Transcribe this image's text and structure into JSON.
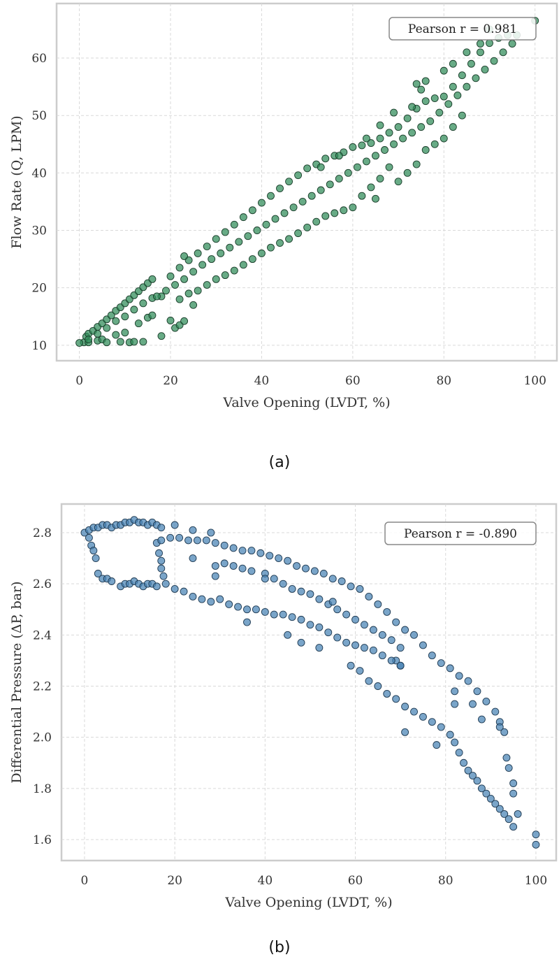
{
  "chart_data": [
    {
      "type": "scatter",
      "caption": "(a)",
      "xlabel": "Valve Opening (LVDT, %)",
      "ylabel": "Flow Rate (Q, LPM)",
      "xlim": [
        -5,
        104.8
      ],
      "ylim": [
        7.3,
        69.5
      ],
      "xticks": [
        0,
        20,
        40,
        60,
        80,
        100
      ],
      "yticks": [
        10,
        20,
        30,
        40,
        50,
        60
      ],
      "grid": true,
      "annotation": "Pearson r = 0.981",
      "annotation_position": "top-right",
      "color": "#2e8b57",
      "edge_color": "#1a3d2a",
      "points": [
        [
          1,
          10.5
        ],
        [
          1.5,
          11.5
        ],
        [
          2,
          12
        ],
        [
          3,
          12.5
        ],
        [
          4,
          13.2
        ],
        [
          5,
          13.8
        ],
        [
          6,
          14.5
        ],
        [
          7,
          15.2
        ],
        [
          8,
          16
        ],
        [
          9,
          16.6
        ],
        [
          10,
          17.3
        ],
        [
          11,
          18
        ],
        [
          12,
          18.7
        ],
        [
          13,
          19.4
        ],
        [
          14,
          20.1
        ],
        [
          15,
          20.8
        ],
        [
          16,
          21.5
        ],
        [
          0,
          10.4
        ],
        [
          2,
          10.5
        ],
        [
          4,
          10.8
        ],
        [
          5,
          11
        ],
        [
          6,
          10.5
        ],
        [
          8,
          11.8
        ],
        [
          9,
          10.6
        ],
        [
          10,
          12.2
        ],
        [
          11,
          10.5
        ],
        [
          12,
          10.6
        ],
        [
          13,
          13.8
        ],
        [
          14,
          10.6
        ],
        [
          15,
          14.8
        ],
        [
          16,
          15.2
        ],
        [
          18,
          11.6
        ],
        [
          20,
          14.3
        ],
        [
          21,
          13
        ],
        [
          22,
          13.5
        ],
        [
          23,
          14.2
        ],
        [
          2,
          11
        ],
        [
          4,
          12
        ],
        [
          6,
          13
        ],
        [
          8,
          14.2
        ],
        [
          10,
          15
        ],
        [
          12,
          16.2
        ],
        [
          14,
          17.3
        ],
        [
          16,
          18.2
        ],
        [
          18,
          18.5
        ],
        [
          20,
          22
        ],
        [
          22,
          23.5
        ],
        [
          24,
          24.8
        ],
        [
          26,
          26
        ],
        [
          28,
          27.2
        ],
        [
          30,
          28.5
        ],
        [
          32,
          29.7
        ],
        [
          34,
          31
        ],
        [
          36,
          32.3
        ],
        [
          38,
          33.5
        ],
        [
          40,
          34.8
        ],
        [
          42,
          36
        ],
        [
          44,
          37.3
        ],
        [
          46,
          38.5
        ],
        [
          48,
          39.6
        ],
        [
          50,
          40.8
        ],
        [
          52,
          41.5
        ],
        [
          54,
          42.5
        ],
        [
          56,
          43
        ],
        [
          58,
          43.6
        ],
        [
          60,
          44.5
        ],
        [
          62,
          44.8
        ],
        [
          64,
          45.2
        ],
        [
          66,
          46
        ],
        [
          68,
          47
        ],
        [
          70,
          48
        ],
        [
          72,
          49.5
        ],
        [
          74,
          51.2
        ],
        [
          76,
          52.5
        ],
        [
          78,
          53
        ],
        [
          80,
          53.3
        ],
        [
          82,
          55
        ],
        [
          84,
          57
        ],
        [
          86,
          59
        ],
        [
          88,
          61
        ],
        [
          90,
          62.6
        ],
        [
          92,
          63.5
        ],
        [
          94,
          64
        ],
        [
          96,
          64
        ],
        [
          17,
          18.5
        ],
        [
          19,
          19.5
        ],
        [
          21,
          20.5
        ],
        [
          23,
          21.5
        ],
        [
          25,
          22.8
        ],
        [
          27,
          24
        ],
        [
          29,
          25
        ],
        [
          31,
          26
        ],
        [
          33,
          27
        ],
        [
          35,
          28
        ],
        [
          37,
          29
        ],
        [
          39,
          30
        ],
        [
          41,
          31
        ],
        [
          43,
          32
        ],
        [
          45,
          33
        ],
        [
          47,
          34
        ],
        [
          49,
          35
        ],
        [
          51,
          36
        ],
        [
          53,
          37
        ],
        [
          55,
          38
        ],
        [
          57,
          39
        ],
        [
          59,
          40
        ],
        [
          61,
          41
        ],
        [
          63,
          42
        ],
        [
          65,
          43
        ],
        [
          67,
          44
        ],
        [
          69,
          45
        ],
        [
          71,
          46
        ],
        [
          73,
          47
        ],
        [
          75,
          48
        ],
        [
          77,
          49
        ],
        [
          79,
          50.5
        ],
        [
          81,
          52
        ],
        [
          83,
          53.5
        ],
        [
          85,
          55
        ],
        [
          87,
          56.5
        ],
        [
          89,
          58
        ],
        [
          91,
          59.5
        ],
        [
          93,
          61
        ],
        [
          95,
          62.5
        ],
        [
          22,
          18
        ],
        [
          24,
          19
        ],
        [
          26,
          19.5
        ],
        [
          28,
          20.5
        ],
        [
          30,
          21.5
        ],
        [
          32,
          22.2
        ],
        [
          34,
          23
        ],
        [
          36,
          24
        ],
        [
          38,
          25
        ],
        [
          40,
          26
        ],
        [
          42,
          27
        ],
        [
          44,
          27.8
        ],
        [
          46,
          28.5
        ],
        [
          48,
          29.5
        ],
        [
          50,
          30.5
        ],
        [
          52,
          31.5
        ],
        [
          54,
          32.5
        ],
        [
          56,
          33
        ],
        [
          58,
          33.5
        ],
        [
          60,
          34
        ],
        [
          62,
          36
        ],
        [
          64,
          37.5
        ],
        [
          66,
          39
        ],
        [
          68,
          41
        ],
        [
          70,
          38.5
        ],
        [
          72,
          40
        ],
        [
          74,
          41.5
        ],
        [
          76,
          44
        ],
        [
          78,
          45
        ],
        [
          80,
          46
        ],
        [
          82,
          48
        ],
        [
          84,
          50
        ],
        [
          65,
          35.5
        ],
        [
          69,
          50.5
        ],
        [
          73,
          51.5
        ],
        [
          74,
          55.5
        ],
        [
          75,
          54.5
        ],
        [
          76,
          56
        ],
        [
          80,
          57.8
        ],
        [
          82,
          59
        ],
        [
          85,
          61
        ],
        [
          88,
          62.5
        ],
        [
          90,
          65
        ],
        [
          100,
          66.5
        ],
        [
          66,
          48.3
        ],
        [
          63,
          46
        ],
        [
          57,
          43
        ],
        [
          53,
          41
        ],
        [
          25,
          17
        ],
        [
          23,
          25.5
        ]
      ]
    },
    {
      "type": "scatter",
      "caption": "(b)",
      "xlabel": "Valve Opening (LVDT, %)",
      "ylabel": "Differential Pressure (ΔP, bar)",
      "xlim": [
        -5.1,
        104.5
      ],
      "ylim": [
        1.518,
        2.912
      ],
      "xticks": [
        0,
        20,
        40,
        60,
        80,
        100
      ],
      "yticks": [
        1.6,
        1.8,
        2.0,
        2.2,
        2.4,
        2.6,
        2.8
      ],
      "grid": true,
      "annotation": "Pearson r = -0.890",
      "annotation_position": "top-right",
      "color": "#4682b4",
      "edge_color": "#1f3a52",
      "points": [
        [
          0,
          2.8
        ],
        [
          1,
          2.81
        ],
        [
          2,
          2.82
        ],
        [
          3,
          2.82
        ],
        [
          4,
          2.83
        ],
        [
          5,
          2.83
        ],
        [
          6,
          2.82
        ],
        [
          7,
          2.83
        ],
        [
          8,
          2.83
        ],
        [
          9,
          2.84
        ],
        [
          10,
          2.84
        ],
        [
          11,
          2.85
        ],
        [
          12,
          2.84
        ],
        [
          13,
          2.84
        ],
        [
          14,
          2.83
        ],
        [
          15,
          2.84
        ],
        [
          16,
          2.83
        ],
        [
          17,
          2.82
        ],
        [
          1,
          2.78
        ],
        [
          1.5,
          2.75
        ],
        [
          2,
          2.73
        ],
        [
          2.5,
          2.7
        ],
        [
          3,
          2.64
        ],
        [
          4,
          2.62
        ],
        [
          5,
          2.62
        ],
        [
          6,
          2.61
        ],
        [
          8,
          2.59
        ],
        [
          9,
          2.6
        ],
        [
          10,
          2.6
        ],
        [
          11,
          2.61
        ],
        [
          12,
          2.6
        ],
        [
          13,
          2.59
        ],
        [
          14,
          2.6
        ],
        [
          15,
          2.6
        ],
        [
          16,
          2.59
        ],
        [
          16,
          2.76
        ],
        [
          16.5,
          2.72
        ],
        [
          17,
          2.69
        ],
        [
          17,
          2.66
        ],
        [
          17.5,
          2.63
        ],
        [
          17,
          2.77
        ],
        [
          19,
          2.78
        ],
        [
          21,
          2.78
        ],
        [
          23,
          2.77
        ],
        [
          25,
          2.77
        ],
        [
          27,
          2.77
        ],
        [
          29,
          2.76
        ],
        [
          31,
          2.75
        ],
        [
          33,
          2.74
        ],
        [
          35,
          2.73
        ],
        [
          37,
          2.73
        ],
        [
          39,
          2.72
        ],
        [
          41,
          2.71
        ],
        [
          43,
          2.7
        ],
        [
          45,
          2.69
        ],
        [
          47,
          2.67
        ],
        [
          49,
          2.66
        ],
        [
          51,
          2.65
        ],
        [
          53,
          2.64
        ],
        [
          55,
          2.62
        ],
        [
          57,
          2.61
        ],
        [
          59,
          2.59
        ],
        [
          61,
          2.58
        ],
        [
          63,
          2.55
        ],
        [
          65,
          2.52
        ],
        [
          67,
          2.49
        ],
        [
          69,
          2.45
        ],
        [
          71,
          2.42
        ],
        [
          73,
          2.4
        ],
        [
          75,
          2.36
        ],
        [
          77,
          2.32
        ],
        [
          79,
          2.29
        ],
        [
          81,
          2.27
        ],
        [
          83,
          2.24
        ],
        [
          85,
          2.22
        ],
        [
          87,
          2.18
        ],
        [
          89,
          2.14
        ],
        [
          91,
          2.1
        ],
        [
          92,
          2.06
        ],
        [
          93,
          2.02
        ],
        [
          93.5,
          1.92
        ],
        [
          94,
          1.88
        ],
        [
          95,
          1.82
        ],
        [
          95,
          1.78
        ],
        [
          96,
          1.7
        ],
        [
          20,
          2.83
        ],
        [
          24,
          2.81
        ],
        [
          28,
          2.8
        ],
        [
          29,
          2.67
        ],
        [
          31,
          2.68
        ],
        [
          33,
          2.67
        ],
        [
          35,
          2.66
        ],
        [
          37,
          2.65
        ],
        [
          40,
          2.64
        ],
        [
          42,
          2.62
        ],
        [
          44,
          2.6
        ],
        [
          46,
          2.58
        ],
        [
          48,
          2.57
        ],
        [
          50,
          2.56
        ],
        [
          52,
          2.54
        ],
        [
          54,
          2.52
        ],
        [
          56,
          2.5
        ],
        [
          58,
          2.48
        ],
        [
          60,
          2.46
        ],
        [
          62,
          2.44
        ],
        [
          64,
          2.42
        ],
        [
          66,
          2.4
        ],
        [
          68,
          2.38
        ],
        [
          70,
          2.35
        ],
        [
          70,
          2.28
        ],
        [
          69,
          2.3
        ],
        [
          18,
          2.6
        ],
        [
          20,
          2.58
        ],
        [
          22,
          2.57
        ],
        [
          24,
          2.55
        ],
        [
          26,
          2.54
        ],
        [
          28,
          2.53
        ],
        [
          30,
          2.54
        ],
        [
          32,
          2.52
        ],
        [
          34,
          2.51
        ],
        [
          36,
          2.5
        ],
        [
          38,
          2.5
        ],
        [
          40,
          2.49
        ],
        [
          42,
          2.48
        ],
        [
          44,
          2.48
        ],
        [
          46,
          2.47
        ],
        [
          48,
          2.46
        ],
        [
          50,
          2.44
        ],
        [
          52,
          2.43
        ],
        [
          54,
          2.41
        ],
        [
          56,
          2.39
        ],
        [
          58,
          2.37
        ],
        [
          60,
          2.36
        ],
        [
          62,
          2.35
        ],
        [
          64,
          2.34
        ],
        [
          66,
          2.32
        ],
        [
          68,
          2.3
        ],
        [
          70,
          2.28
        ],
        [
          45,
          2.4
        ],
        [
          48,
          2.37
        ],
        [
          52,
          2.35
        ],
        [
          36,
          2.45
        ],
        [
          59,
          2.28
        ],
        [
          61,
          2.26
        ],
        [
          63,
          2.22
        ],
        [
          65,
          2.2
        ],
        [
          67,
          2.17
        ],
        [
          69,
          2.15
        ],
        [
          71,
          2.12
        ],
        [
          73,
          2.1
        ],
        [
          75,
          2.08
        ],
        [
          77,
          2.06
        ],
        [
          79,
          2.04
        ],
        [
          81,
          2.01
        ],
        [
          82,
          1.98
        ],
        [
          83,
          1.94
        ],
        [
          84,
          1.9
        ],
        [
          85,
          1.87
        ],
        [
          86,
          1.85
        ],
        [
          87,
          1.83
        ],
        [
          88,
          1.8
        ],
        [
          89,
          1.78
        ],
        [
          90,
          1.76
        ],
        [
          91,
          1.74
        ],
        [
          92,
          1.72
        ],
        [
          93,
          1.7
        ],
        [
          94,
          1.68
        ],
        [
          95,
          1.65
        ],
        [
          100,
          1.62
        ],
        [
          100,
          1.58
        ],
        [
          71,
          2.02
        ],
        [
          78,
          1.97
        ],
        [
          82,
          2.18
        ],
        [
          82,
          2.13
        ],
        [
          86,
          2.13
        ],
        [
          88,
          2.07
        ],
        [
          92,
          2.04
        ],
        [
          24,
          2.7
        ],
        [
          29,
          2.63
        ],
        [
          40,
          2.62
        ],
        [
          55,
          2.53
        ]
      ]
    }
  ]
}
